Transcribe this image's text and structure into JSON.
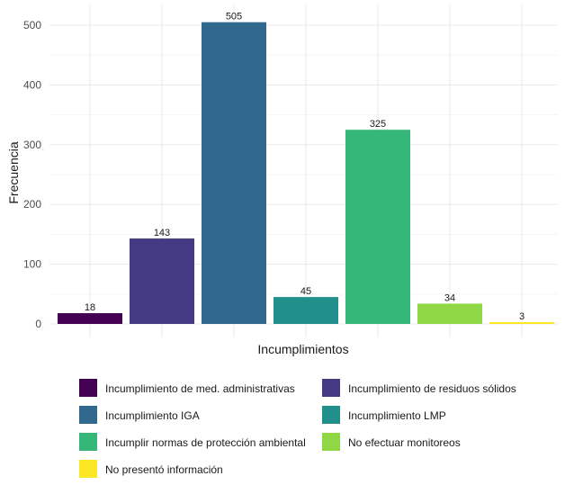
{
  "chart_data": {
    "type": "bar",
    "xlabel": "Incumplimientos",
    "ylabel": "Frecuencia",
    "ylim": [
      0,
      525
    ],
    "yticks": [
      0,
      100,
      200,
      300,
      400,
      500
    ],
    "grid": true,
    "legend_position": "bottom",
    "categories": [
      "Incumplimiento de med. administrativas",
      "Incumplimiento de residuos sólidos",
      "Incumplimiento IGA",
      "Incumplimiento LMP",
      "Incumplir normas de protección ambiental",
      "No efectuar monitoreos",
      "No presentó información"
    ],
    "values": [
      18,
      143,
      505,
      45,
      325,
      34,
      3
    ],
    "colors": [
      "#440154",
      "#443983",
      "#31688E",
      "#21908C",
      "#35B779",
      "#8FD744",
      "#FDE725"
    ]
  }
}
